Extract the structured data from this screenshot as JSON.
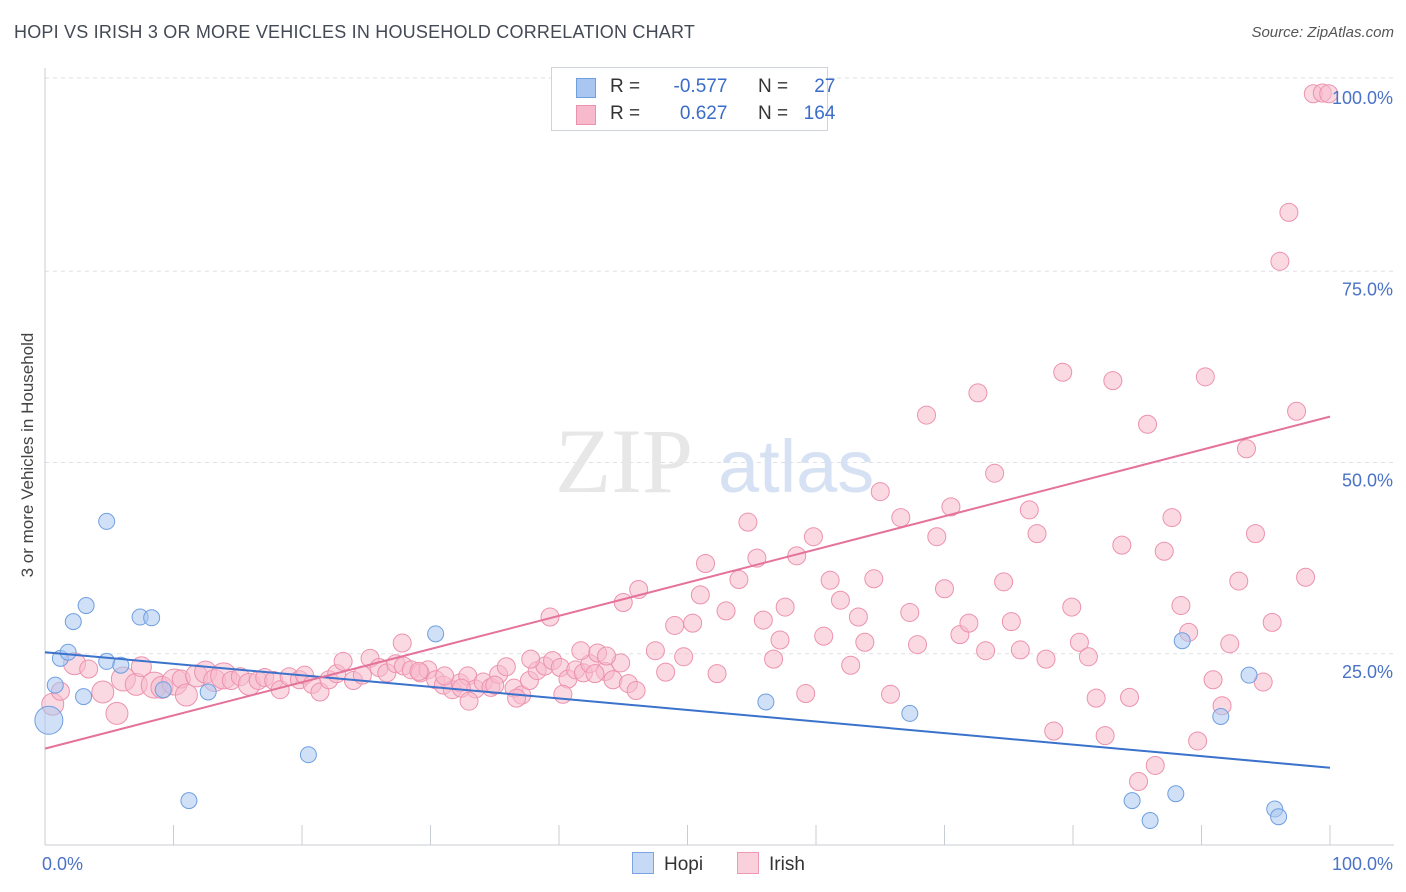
{
  "header": {
    "title": "HOPI VS IRISH 3 OR MORE VEHICLES IN HOUSEHOLD CORRELATION CHART",
    "source": "Source: ZipAtlas.com"
  },
  "watermark": {
    "zip": "ZIP",
    "atlas": "atlas"
  },
  "legend": {
    "hopi": {
      "r_label": "R =",
      "r_value": "-0.577",
      "n_label": "N =",
      "n_value": "27"
    },
    "irish": {
      "r_label": "R =",
      "r_value": "0.627",
      "n_label": "N =",
      "n_value": "164"
    }
  },
  "bottom_legend": {
    "hopi": "Hopi",
    "irish": "Irish"
  },
  "colors": {
    "hopi_fill": "#a9c6f0",
    "hopi_stroke": "#6f9fe0",
    "hopi_line": "#3a72cc",
    "irish_fill": "#f7b9cc",
    "irish_stroke": "#ec92ad",
    "irish_line": "#e4729a",
    "tick_text": "#4a72c6",
    "grid": "#dde0e6"
  },
  "chart_data": {
    "type": "scatter",
    "title": "HOPI VS IRISH 3 OR MORE VEHICLES IN HOUSEHOLD CORRELATION CHART",
    "xlabel": "",
    "ylabel": "3 or more Vehicles in Household",
    "xlim": [
      0,
      100
    ],
    "ylim": [
      0,
      100
    ],
    "x_tick_labels": [
      "0.0%",
      "100.0%"
    ],
    "y_ticks": [
      25,
      50,
      75,
      100
    ],
    "y_tick_labels": [
      "25.0%",
      "50.0%",
      "75.0%",
      "100.0%"
    ],
    "series": [
      {
        "name": "Hopi",
        "trend": {
          "x": [
            0,
            100
          ],
          "y": [
            25.2,
            10.1
          ]
        },
        "points": [
          [
            0.3,
            16.3,
            14
          ],
          [
            0.8,
            20.9,
            8
          ],
          [
            1.2,
            24.4,
            8
          ],
          [
            1.8,
            25.2,
            8
          ],
          [
            2.2,
            29.2,
            8
          ],
          [
            3.0,
            19.4,
            8
          ],
          [
            3.2,
            31.3,
            8
          ],
          [
            4.8,
            24.0,
            8
          ],
          [
            5.9,
            23.5,
            8
          ],
          [
            4.8,
            42.3,
            8
          ],
          [
            7.4,
            29.8,
            8
          ],
          [
            8.3,
            29.7,
            8
          ],
          [
            9.2,
            20.3,
            8
          ],
          [
            11.2,
            5.8,
            8
          ],
          [
            12.7,
            20.0,
            8
          ],
          [
            20.5,
            11.8,
            8
          ],
          [
            30.4,
            27.6,
            8
          ],
          [
            56.1,
            18.7,
            8
          ],
          [
            67.3,
            17.2,
            8
          ],
          [
            84.6,
            5.8,
            8
          ],
          [
            86.0,
            3.2,
            8
          ],
          [
            88.0,
            6.7,
            8
          ],
          [
            88.5,
            26.7,
            8
          ],
          [
            91.5,
            16.8,
            8
          ],
          [
            93.7,
            22.2,
            8
          ],
          [
            95.7,
            4.7,
            8
          ],
          [
            96.0,
            3.7,
            8
          ]
        ]
      },
      {
        "name": "Irish",
        "trend": {
          "x": [
            0,
            100
          ],
          "y": [
            12.6,
            56.0
          ]
        },
        "points": [
          [
            0.6,
            18.4,
            11
          ],
          [
            1.2,
            20.1,
            9
          ],
          [
            2.3,
            23.7,
            11
          ],
          [
            3.4,
            23.0,
            9
          ],
          [
            4.5,
            20.0,
            11
          ],
          [
            5.6,
            17.2,
            11
          ],
          [
            6.1,
            21.7,
            12
          ],
          [
            7.1,
            21.0,
            11
          ],
          [
            7.5,
            23.3,
            10
          ],
          [
            8.5,
            20.9,
            13
          ],
          [
            9.1,
            20.6,
            11
          ],
          [
            10.1,
            21.3,
            13
          ],
          [
            10.6,
            21.7,
            9
          ],
          [
            11.0,
            19.6,
            11
          ],
          [
            11.8,
            22.1,
            11
          ],
          [
            12.5,
            22.6,
            11
          ],
          [
            13.2,
            21.5,
            11
          ],
          [
            13.9,
            22.1,
            13
          ],
          [
            14.5,
            21.5,
            9
          ],
          [
            15.2,
            22.0,
            9
          ],
          [
            15.9,
            21.0,
            11
          ],
          [
            16.6,
            21.5,
            9
          ],
          [
            17.1,
            21.9,
            9
          ],
          [
            17.8,
            21.5,
            9
          ],
          [
            18.3,
            20.3,
            9
          ],
          [
            19.0,
            22.0,
            9
          ],
          [
            19.8,
            21.6,
            9
          ],
          [
            20.2,
            22.2,
            9
          ],
          [
            20.8,
            21.0,
            9
          ],
          [
            21.4,
            20.0,
            9
          ],
          [
            22.1,
            21.6,
            9
          ],
          [
            22.7,
            22.4,
            9
          ],
          [
            23.2,
            24.0,
            9
          ],
          [
            24.0,
            21.5,
            9
          ],
          [
            24.7,
            22.2,
            9
          ],
          [
            25.3,
            24.4,
            9
          ],
          [
            26.0,
            23.2,
            9
          ],
          [
            26.6,
            22.5,
            9
          ],
          [
            27.3,
            23.7,
            9
          ],
          [
            27.9,
            23.4,
            9
          ],
          [
            28.5,
            22.9,
            9
          ],
          [
            29.2,
            22.5,
            9
          ],
          [
            29.8,
            22.9,
            9
          ],
          [
            30.4,
            21.6,
            9
          ],
          [
            31.0,
            20.9,
            9
          ],
          [
            31.7,
            20.3,
            9
          ],
          [
            32.3,
            21.2,
            9
          ],
          [
            32.9,
            22.1,
            9
          ],
          [
            33.5,
            20.4,
            9
          ],
          [
            34.1,
            21.3,
            9
          ],
          [
            34.7,
            20.6,
            9
          ],
          [
            35.3,
            22.3,
            9
          ],
          [
            35.9,
            23.3,
            9
          ],
          [
            36.5,
            20.5,
            9
          ],
          [
            37.1,
            19.6,
            9
          ],
          [
            37.7,
            21.5,
            9
          ],
          [
            38.3,
            22.8,
            9
          ],
          [
            38.9,
            23.4,
            9
          ],
          [
            39.5,
            24.1,
            9
          ],
          [
            40.1,
            23.2,
            9
          ],
          [
            40.7,
            21.7,
            9
          ],
          [
            41.3,
            22.9,
            9
          ],
          [
            41.9,
            22.5,
            9
          ],
          [
            42.4,
            23.7,
            9
          ],
          [
            43.0,
            25.1,
            9
          ],
          [
            43.6,
            22.7,
            9
          ],
          [
            44.2,
            21.6,
            9
          ],
          [
            44.8,
            23.8,
            9
          ],
          [
            45.4,
            21.1,
            9
          ],
          [
            46.0,
            20.2,
            9
          ],
          [
            27.8,
            26.4,
            9
          ],
          [
            29.1,
            22.7,
            9
          ],
          [
            31.1,
            22.1,
            9
          ],
          [
            32.4,
            20.5,
            9
          ],
          [
            33.0,
            18.8,
            9
          ],
          [
            35.0,
            20.9,
            9
          ],
          [
            36.7,
            19.2,
            9
          ],
          [
            37.8,
            24.3,
            9
          ],
          [
            39.3,
            29.8,
            9
          ],
          [
            40.3,
            19.7,
            9
          ],
          [
            41.7,
            25.4,
            9
          ],
          [
            42.8,
            22.4,
            9
          ],
          [
            43.7,
            24.7,
            9
          ],
          [
            45.0,
            31.7,
            9
          ],
          [
            46.2,
            33.4,
            9
          ],
          [
            47.5,
            25.4,
            9
          ],
          [
            48.3,
            22.6,
            9
          ],
          [
            49.0,
            28.7,
            9
          ],
          [
            49.7,
            24.6,
            9
          ],
          [
            50.4,
            29.0,
            9
          ],
          [
            51.0,
            32.7,
            9
          ],
          [
            51.4,
            36.8,
            9
          ],
          [
            52.3,
            22.4,
            9
          ],
          [
            53.0,
            30.6,
            9
          ],
          [
            54.0,
            34.7,
            9
          ],
          [
            54.7,
            42.2,
            9
          ],
          [
            55.4,
            37.5,
            9
          ],
          [
            55.9,
            29.4,
            9
          ],
          [
            56.7,
            24.3,
            9
          ],
          [
            57.2,
            26.8,
            9
          ],
          [
            57.6,
            31.1,
            9
          ],
          [
            58.5,
            37.8,
            9
          ],
          [
            59.2,
            19.8,
            9
          ],
          [
            59.8,
            40.3,
            9
          ],
          [
            60.6,
            27.3,
            9
          ],
          [
            61.1,
            34.6,
            9
          ],
          [
            61.9,
            32.0,
            9
          ],
          [
            62.7,
            23.5,
            9
          ],
          [
            63.3,
            29.8,
            9
          ],
          [
            63.8,
            26.5,
            9
          ],
          [
            64.5,
            34.8,
            9
          ],
          [
            65.0,
            46.2,
            9
          ],
          [
            65.8,
            19.7,
            9
          ],
          [
            66.6,
            42.8,
            9
          ],
          [
            67.3,
            30.4,
            9
          ],
          [
            67.9,
            26.2,
            9
          ],
          [
            68.6,
            56.2,
            9
          ],
          [
            69.4,
            40.3,
            9
          ],
          [
            70.0,
            33.5,
            9
          ],
          [
            70.5,
            44.2,
            9
          ],
          [
            71.2,
            27.5,
            9
          ],
          [
            71.9,
            29.0,
            9
          ],
          [
            72.6,
            59.1,
            9
          ],
          [
            73.2,
            25.4,
            9
          ],
          [
            73.9,
            48.6,
            9
          ],
          [
            74.6,
            34.4,
            9
          ],
          [
            75.2,
            29.2,
            9
          ],
          [
            75.9,
            25.5,
            9
          ],
          [
            76.6,
            43.8,
            9
          ],
          [
            77.2,
            40.7,
            9
          ],
          [
            77.9,
            24.3,
            9
          ],
          [
            78.5,
            14.9,
            9
          ],
          [
            79.2,
            61.8,
            9
          ],
          [
            79.9,
            31.1,
            9
          ],
          [
            80.5,
            26.5,
            9
          ],
          [
            81.2,
            24.6,
            9
          ],
          [
            81.8,
            19.2,
            9
          ],
          [
            82.5,
            14.3,
            9
          ],
          [
            83.1,
            60.7,
            9
          ],
          [
            83.8,
            39.2,
            9
          ],
          [
            84.4,
            19.3,
            9
          ],
          [
            85.1,
            8.3,
            9
          ],
          [
            85.8,
            55.0,
            9
          ],
          [
            86.4,
            10.4,
            9
          ],
          [
            87.1,
            38.4,
            9
          ],
          [
            87.7,
            42.8,
            9
          ],
          [
            88.4,
            31.3,
            9
          ],
          [
            89.0,
            27.8,
            9
          ],
          [
            89.7,
            13.6,
            9
          ],
          [
            90.3,
            61.2,
            9
          ],
          [
            90.9,
            21.6,
            9
          ],
          [
            91.6,
            18.2,
            9
          ],
          [
            92.2,
            26.3,
            9
          ],
          [
            92.9,
            34.5,
            9
          ],
          [
            93.5,
            51.8,
            9
          ],
          [
            94.2,
            40.7,
            9
          ],
          [
            94.8,
            21.3,
            9
          ],
          [
            95.5,
            29.1,
            9
          ],
          [
            96.1,
            76.3,
            9
          ],
          [
            96.8,
            82.7,
            9
          ],
          [
            97.4,
            56.7,
            9
          ],
          [
            98.1,
            35.0,
            9
          ],
          [
            98.7,
            98.2,
            9
          ],
          [
            99.4,
            98.3,
            9
          ],
          [
            99.9,
            98.2,
            9
          ]
        ]
      }
    ]
  }
}
